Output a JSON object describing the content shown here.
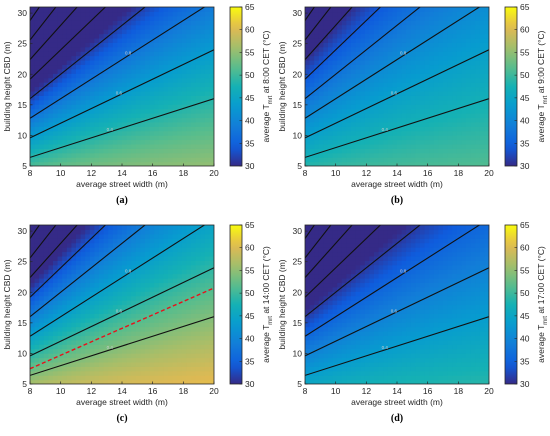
{
  "chart_data": [
    {
      "type": "heatmap",
      "panel": "(a)",
      "xlabel": "average street width (m)",
      "ylabel": "building height CBD (m)",
      "colorbar_label_parts": [
        "average T",
        "mrt",
        " at 8:00 CET (°C)"
      ],
      "xlim": [
        8,
        20
      ],
      "ylim": [
        5,
        31
      ],
      "xticks": [
        8,
        10,
        12,
        14,
        16,
        18,
        20
      ],
      "yticks": [
        5,
        10,
        15,
        20,
        25,
        30
      ],
      "clim": [
        30,
        65
      ],
      "cticks": [
        30,
        35,
        40,
        45,
        50,
        55,
        60,
        65
      ],
      "field": {
        "base": 58,
        "slope": 11,
        "curv": 1.0
      },
      "contour_levels": [
        0.4,
        0.6,
        0.8,
        1.0,
        1.2,
        1.4,
        1.6,
        1.8
      ],
      "red_line": null
    },
    {
      "type": "heatmap",
      "panel": "(b)",
      "xlabel": "average street width (m)",
      "ylabel": "building height CBD (m)",
      "colorbar_label_parts": [
        "average T",
        "mrt",
        " at 9:00 CET (°C)"
      ],
      "xlim": [
        8,
        20
      ],
      "ylim": [
        5,
        31
      ],
      "xticks": [
        8,
        10,
        12,
        14,
        16,
        18,
        20
      ],
      "yticks": [
        5,
        10,
        15,
        20,
        25,
        30
      ],
      "clim": [
        30,
        65
      ],
      "cticks": [
        30,
        35,
        40,
        45,
        50,
        55,
        60,
        65
      ],
      "field": {
        "base": 53,
        "slope": 7,
        "curv": 0.4
      },
      "contour_levels": [
        0.4,
        0.6,
        0.8,
        1.0,
        1.2,
        1.4,
        1.6,
        1.8
      ],
      "red_line": null
    },
    {
      "type": "heatmap",
      "panel": "(c)",
      "xlabel": "average street width (m)",
      "ylabel": "building height CBD (m)",
      "colorbar_label_parts": [
        "average T",
        "mrt",
        " at 14:00 CET (°C)"
      ],
      "xlim": [
        8,
        20
      ],
      "ylim": [
        5,
        31
      ],
      "xticks": [
        8,
        10,
        12,
        14,
        16,
        18,
        20
      ],
      "yticks": [
        5,
        10,
        15,
        20,
        25,
        30
      ],
      "clim": [
        30,
        65
      ],
      "cticks": [
        30,
        35,
        40,
        45,
        50,
        55,
        60,
        65
      ],
      "field": {
        "base": 64,
        "slope": 12,
        "curv": 0.3
      },
      "contour_levels": [
        0.4,
        0.6,
        0.8,
        1.0,
        1.2,
        1.4,
        1.6,
        1.8
      ],
      "red_line": {
        "x": [
          8,
          20
        ],
        "y": [
          7.5,
          20.7
        ]
      }
    },
    {
      "type": "heatmap",
      "panel": "(d)",
      "xlabel": "average street width (m)",
      "ylabel": "building height CBD (m)",
      "colorbar_label_parts": [
        "average T",
        "mrt",
        " at 17:00 CET (°C)"
      ],
      "xlim": [
        8,
        20
      ],
      "ylim": [
        5,
        31
      ],
      "xticks": [
        8,
        10,
        12,
        14,
        16,
        18,
        20
      ],
      "yticks": [
        5,
        10,
        15,
        20,
        25,
        30
      ],
      "clim": [
        30,
        65
      ],
      "cticks": [
        30,
        35,
        40,
        45,
        50,
        55,
        60,
        65
      ],
      "field": {
        "base": 51,
        "slope": 9,
        "curv": 0.4
      },
      "contour_levels": [
        0.4,
        0.6,
        0.8,
        1.0,
        1.2,
        1.4,
        1.6,
        1.8
      ],
      "red_line": null
    }
  ]
}
